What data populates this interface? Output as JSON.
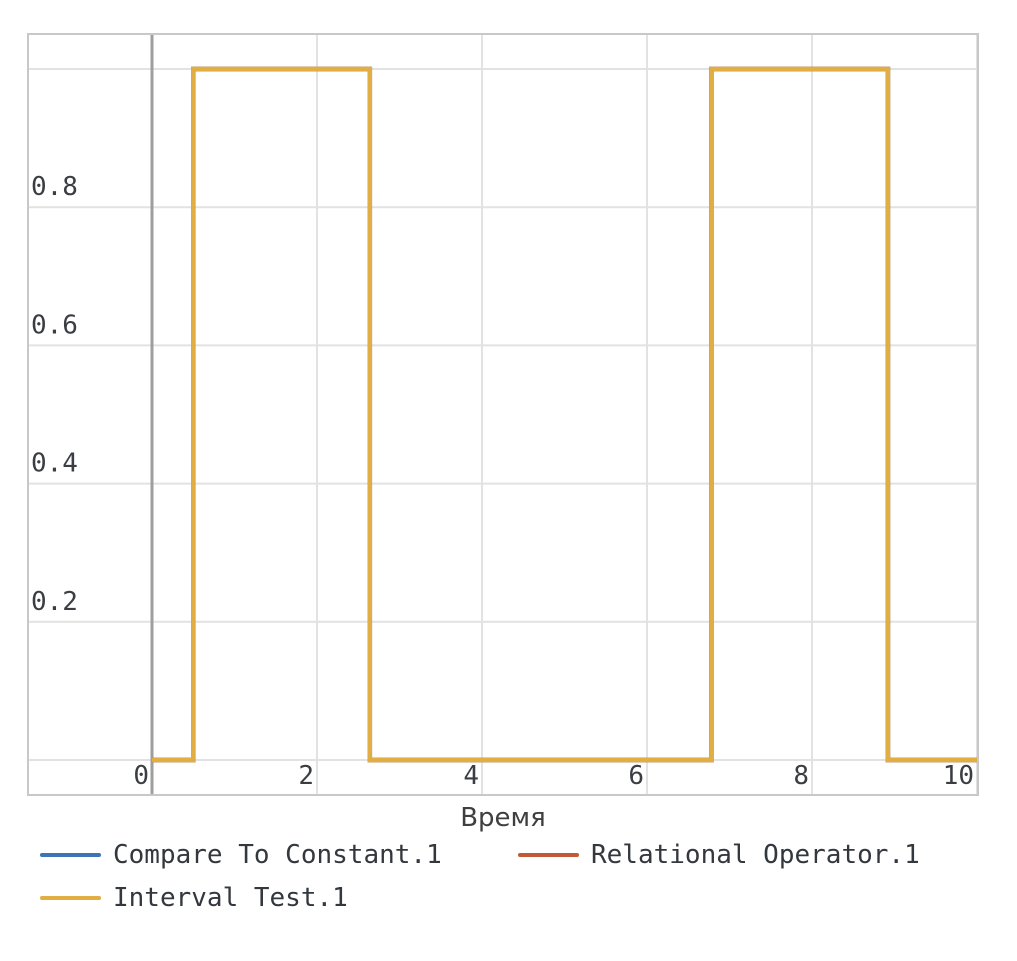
{
  "chart_data": {
    "type": "line",
    "title": "",
    "xlabel": "Время",
    "ylabel": "",
    "xlim": [
      -1.5,
      10
    ],
    "ylim": [
      -0.05,
      1.05
    ],
    "grid": true,
    "legend_position": "below-left",
    "x_ticks": [
      0,
      2,
      4,
      6,
      8,
      10
    ],
    "x_tick_labels": [
      "0",
      "2",
      "4",
      "6",
      "8",
      "10"
    ],
    "y_ticks": [
      0.2,
      0.4,
      0.6,
      0.8
    ],
    "y_tick_labels": [
      "0.2",
      "0.4",
      "0.6",
      "0.8"
    ],
    "x_gridlines": [
      2,
      4,
      6,
      8,
      10
    ],
    "y_gridlines": [
      0,
      0.2,
      0.4,
      0.6,
      0.8,
      1.0
    ],
    "zero_axis_x": 0,
    "series": [
      {
        "name": "Compare To Constant.1",
        "color": "#3e73b7",
        "points": [
          [
            0,
            0
          ],
          [
            0.5,
            0
          ],
          [
            0.5,
            1
          ],
          [
            2.64,
            1
          ],
          [
            2.64,
            0
          ],
          [
            6.78,
            0
          ],
          [
            6.78,
            1
          ],
          [
            8.92,
            1
          ],
          [
            8.92,
            0
          ],
          [
            10,
            0
          ]
        ]
      },
      {
        "name": "Relational Operator.1",
        "color": "#c05b35",
        "points": [
          [
            0,
            0
          ],
          [
            0.5,
            0
          ],
          [
            0.5,
            1
          ],
          [
            2.64,
            1
          ],
          [
            2.64,
            0
          ],
          [
            6.78,
            0
          ],
          [
            6.78,
            1
          ],
          [
            8.92,
            1
          ],
          [
            8.92,
            0
          ],
          [
            10,
            0
          ]
        ]
      },
      {
        "name": "Interval Test.1",
        "color": "#e1ae43",
        "points": [
          [
            0,
            0
          ],
          [
            0.5,
            0
          ],
          [
            0.5,
            1
          ],
          [
            2.64,
            1
          ],
          [
            2.64,
            0
          ],
          [
            6.78,
            0
          ],
          [
            6.78,
            1
          ],
          [
            8.92,
            1
          ],
          [
            8.92,
            0
          ],
          [
            10,
            0
          ]
        ]
      }
    ],
    "colors": {
      "grid": "#e2e2e2",
      "frame": "#c8c8c8",
      "zero_axis": "#9e9e9e",
      "tick_text": "#3a3d42"
    }
  }
}
